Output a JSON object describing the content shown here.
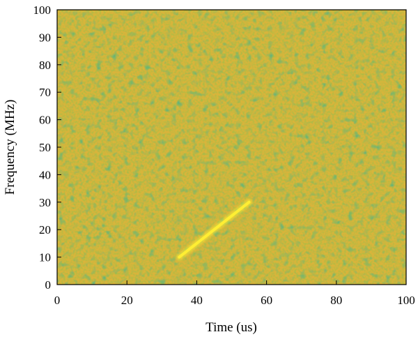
{
  "chart_data": {
    "type": "heatmap",
    "title": "",
    "xlabel": "Time (us)",
    "ylabel": "Frequency (MHz)",
    "xlim": [
      0,
      100
    ],
    "ylim": [
      0,
      100
    ],
    "xticks": [
      "0",
      "20",
      "40",
      "60",
      "80",
      "100"
    ],
    "yticks": [
      "0",
      "10",
      "20",
      "30",
      "40",
      "50",
      "60",
      "70",
      "80",
      "90",
      "100"
    ],
    "grid": false,
    "legend": "none",
    "background": "noise",
    "colors": {
      "noise_low": "#29b39a",
      "noise_mid": "#8cc24a",
      "noise_high": "#d9b43a",
      "signal": "#ffee33"
    },
    "signal": {
      "name": "",
      "x": [
        35,
        55
      ],
      "y": [
        10,
        30
      ]
    }
  }
}
